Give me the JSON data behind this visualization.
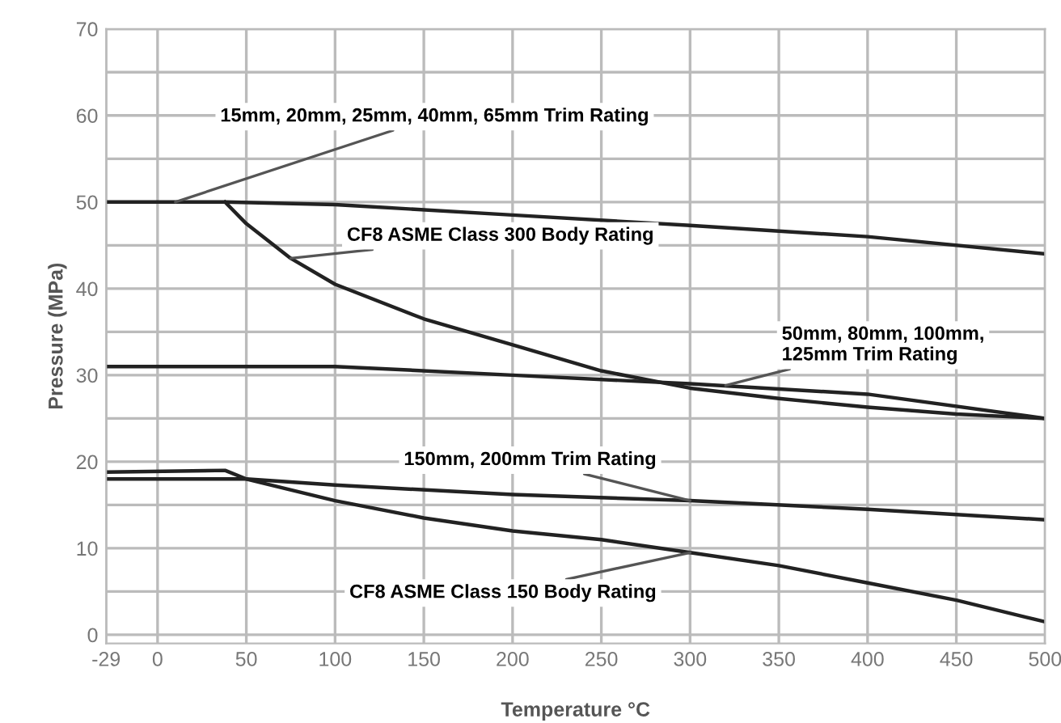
{
  "chart_data": {
    "type": "line",
    "xlabel": "Temperature °C",
    "ylabel": "Pressure (MPa)",
    "xlim": [
      -29,
      500
    ],
    "xticks": [
      -29,
      0,
      50,
      100,
      150,
      200,
      250,
      300,
      350,
      400,
      450,
      500
    ],
    "ylim": [
      -1,
      70
    ],
    "yticks": [
      0,
      {
        "value": 5,
        "label": null
      },
      10,
      {
        "value": 15,
        "label": null
      },
      20,
      {
        "value": 25,
        "label": null
      },
      30,
      {
        "value": 35,
        "label": null
      },
      40,
      {
        "value": 45,
        "label": null
      },
      50,
      {
        "value": 55,
        "label": null
      },
      60,
      {
        "value": 65,
        "label": null
      },
      70
    ],
    "grid": true,
    "marker": "none",
    "line_style": "solid",
    "series": [
      {
        "color": "#222222",
        "x": [
          -29,
          38,
          100,
          200,
          300,
          400,
          500
        ],
        "values": [
          50,
          50,
          49.7,
          48.5,
          47.3,
          46,
          44
        ]
      },
      {
        "color": "#222222",
        "x": [
          38,
          50,
          75,
          100,
          150,
          200,
          250,
          300,
          350,
          400,
          450,
          500
        ],
        "values": [
          50,
          47.5,
          43.5,
          40.5,
          36.5,
          33.5,
          30.5,
          28.5,
          27.3,
          26.3,
          25.5,
          25
        ]
      },
      {
        "color": "#222222",
        "x": [
          -29,
          100,
          200,
          300,
          400,
          500
        ],
        "values": [
          31,
          31,
          30,
          29,
          27.8,
          25
        ]
      },
      {
        "color": "#222222",
        "x": [
          -29,
          50,
          100,
          200,
          300,
          400,
          500
        ],
        "values": [
          18,
          18,
          17.3,
          16.2,
          15.5,
          14.5,
          13.3
        ]
      },
      {
        "color": "#222222",
        "x": [
          -29,
          38,
          50,
          100,
          150,
          200,
          250,
          300,
          350,
          400,
          450,
          500
        ],
        "values": [
          18.8,
          19,
          18,
          15.5,
          13.5,
          12,
          11,
          9.5,
          8,
          6,
          4,
          1.5
        ]
      }
    ],
    "annotations": [
      {
        "text": "15mm, 20mm, 25mm, 40mm, 65mm Trim Rating",
        "x": 10,
        "y": 50
      },
      {
        "text": "CF8 ASME Class 300 Body Rating",
        "x": 75,
        "y": 43.5
      },
      {
        "text": "50mm, 80mm, 100mm,\n125mm Trim Rating",
        "x": 320,
        "y": 28.8
      },
      {
        "text": "150mm, 200mm Trim Rating",
        "x": 300,
        "y": 15.5
      },
      {
        "text": "CF8 ASME Class 150 Body Rating",
        "x": 300,
        "y": 9.5
      }
    ]
  }
}
